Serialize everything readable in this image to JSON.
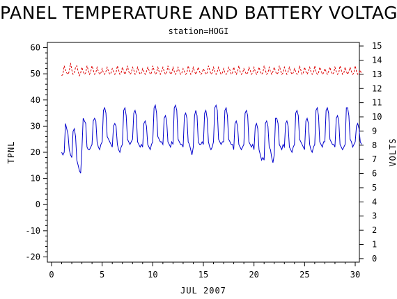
{
  "header": {
    "title": "PANEL TEMPERATURE AND BATTERY VOLTAGE",
    "subtitle": "station=HOGI"
  },
  "chart_data": {
    "type": "line",
    "title": "PANEL TEMPERATURE AND BATTERY VOLTAGE",
    "subtitle": "station=HOGI",
    "xlabel": "JUL 2007",
    "ylabel_left": "TPNL",
    "ylabel_right": "VOLTS",
    "xlim": [
      0,
      30
    ],
    "ylim_left": [
      -22,
      62
    ],
    "ylim_right": [
      -0.25,
      15.25
    ],
    "x_ticks": [
      0,
      5,
      10,
      15,
      20,
      25,
      30
    ],
    "y_ticks_left": [
      -20,
      -10,
      0,
      10,
      20,
      30,
      40,
      50,
      60
    ],
    "y_ticks_right": [
      0,
      1,
      2,
      3,
      4,
      5,
      6,
      7,
      8,
      9,
      10,
      11,
      12,
      13,
      14,
      15
    ],
    "grid": false,
    "series": [
      {
        "axis": "left",
        "color": "#0000cc",
        "style": "solid",
        "x_start": 1,
        "x_step": 0.125,
        "values": [
          20,
          19,
          20,
          31,
          29,
          27,
          21,
          19,
          18,
          28,
          29,
          26,
          17,
          15,
          13,
          12,
          21,
          33,
          32,
          31,
          22,
          21,
          21,
          22,
          23,
          32,
          33,
          32,
          24,
          22,
          21,
          23,
          24,
          36,
          37,
          35,
          26,
          25,
          24,
          23,
          22,
          30,
          31,
          30,
          23,
          21,
          20,
          22,
          23,
          36,
          37,
          34,
          25,
          24,
          23,
          24,
          25,
          35,
          36,
          34,
          24,
          23,
          22,
          23,
          22,
          31,
          32,
          30,
          23,
          22,
          21,
          23,
          24,
          37,
          38,
          35,
          26,
          25,
          24,
          24,
          23,
          33,
          34,
          32,
          24,
          23,
          22,
          24,
          23,
          37,
          38,
          36,
          25,
          24,
          23,
          23,
          22,
          34,
          35,
          33,
          24,
          23,
          21,
          19,
          22,
          34,
          36,
          34,
          24,
          23,
          23,
          24,
          23,
          35,
          36,
          33,
          24,
          22,
          21,
          22,
          24,
          37,
          38,
          36,
          25,
          24,
          23,
          24,
          24,
          36,
          37,
          34,
          25,
          24,
          23,
          23,
          21,
          31,
          32,
          30,
          23,
          22,
          21,
          22,
          23,
          35,
          36,
          34,
          24,
          23,
          22,
          23,
          21,
          30,
          31,
          29,
          21,
          19,
          17,
          18,
          17,
          31,
          32,
          30,
          22,
          21,
          18,
          16,
          19,
          33,
          33,
          31,
          23,
          22,
          21,
          23,
          22,
          31,
          32,
          30,
          22,
          21,
          20,
          22,
          23,
          35,
          36,
          34,
          25,
          24,
          23,
          22,
          21,
          32,
          33,
          31,
          23,
          21,
          20,
          22,
          23,
          36,
          37,
          34,
          24,
          23,
          22,
          24,
          24,
          36,
          37,
          35,
          25,
          24,
          23,
          23,
          22,
          33,
          34,
          32,
          23,
          22,
          21,
          22,
          23,
          37,
          37,
          34,
          25,
          24,
          22,
          23,
          24,
          30,
          31,
          29,
          24,
          23
        ]
      },
      {
        "axis": "right",
        "color": "#dd0000",
        "style": "dashed",
        "x_start": 1,
        "x_step": 0.125,
        "values": [
          12.9,
          13.0,
          13.6,
          13.3,
          13.1,
          13.0,
          13.2,
          13.8,
          13.3,
          13.0,
          13.1,
          13.5,
          13.6,
          13.2,
          12.9,
          13.1,
          13.5,
          13.2,
          13.0,
          13.1,
          13.6,
          13.3,
          13.0,
          13.2,
          13.6,
          13.3,
          13.0,
          13.1,
          13.5,
          13.2,
          13.0,
          13.1,
          13.4,
          13.1,
          13.0,
          13.2,
          13.5,
          13.2,
          13.0,
          13.1,
          13.4,
          13.2,
          13.0,
          13.1,
          13.6,
          13.3,
          13.0,
          13.1,
          13.5,
          13.2,
          13.0,
          13.2,
          13.6,
          13.2,
          13.0,
          13.1,
          13.5,
          13.3,
          13.0,
          13.1,
          13.5,
          13.2,
          13.0,
          13.1,
          13.4,
          13.2,
          13.0,
          13.2,
          13.5,
          13.3,
          13.0,
          13.1,
          13.6,
          13.3,
          13.0,
          13.1,
          13.5,
          13.2,
          13.0,
          13.2,
          13.5,
          13.2,
          13.0,
          13.1,
          13.6,
          13.3,
          13.0,
          13.1,
          13.5,
          13.2,
          13.0,
          13.2,
          13.5,
          13.2,
          13.0,
          13.1,
          13.4,
          13.2,
          13.0,
          13.1,
          13.6,
          13.3,
          13.0,
          13.1,
          13.5,
          13.2,
          13.0,
          13.2,
          13.5,
          13.2,
          13.0,
          13.1,
          13.4,
          13.2,
          13.0,
          13.1,
          13.6,
          13.3,
          13.0,
          13.1,
          13.5,
          13.2,
          13.0,
          13.2,
          13.5,
          13.2,
          13.0,
          13.1,
          13.4,
          13.1,
          13.0,
          13.1,
          13.5,
          13.3,
          13.0,
          13.1,
          13.5,
          13.2,
          13.0,
          13.2,
          13.6,
          13.2,
          13.0,
          13.1,
          13.4,
          13.2,
          13.0,
          13.1,
          13.5,
          13.3,
          13.0,
          13.1,
          13.5,
          13.2,
          13.0,
          13.2,
          13.5,
          13.2,
          13.0,
          13.1,
          13.6,
          13.3,
          13.0,
          13.1,
          13.5,
          13.2,
          13.0,
          13.2,
          13.5,
          13.2,
          13.0,
          13.1,
          13.6,
          13.3,
          13.0,
          13.1,
          13.5,
          13.2,
          13.0,
          13.2,
          13.5,
          13.2,
          13.0,
          13.1,
          13.4,
          13.2,
          13.0,
          13.1,
          13.6,
          13.3,
          13.0,
          13.1,
          13.5,
          13.2,
          13.0,
          13.2,
          13.5,
          13.2,
          13.0,
          13.1,
          13.6,
          13.2,
          13.0,
          13.1,
          13.5,
          13.3,
          13.0,
          13.1,
          13.4,
          13.2,
          13.0,
          13.2,
          13.5,
          13.2,
          13.0,
          13.1,
          13.5,
          13.2,
          13.0,
          13.1,
          13.6,
          13.3,
          13.0,
          13.1,
          13.5,
          13.2,
          13.0,
          13.2,
          13.5,
          13.2,
          13.0,
          13.1,
          13.6,
          13.2,
          13.0,
          13.1,
          13.3,
          13.0
        ]
      }
    ]
  }
}
